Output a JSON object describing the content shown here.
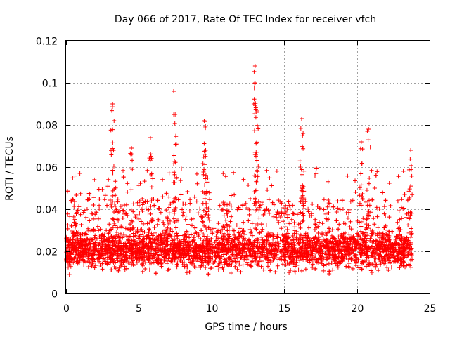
{
  "chart_data": {
    "type": "scatter",
    "title": "Day 066 of 2017, Rate Of TEC Index for receiver vfch",
    "xlabel": "GPS time / hours",
    "ylabel": "ROTI / TECUs",
    "xlim": [
      0,
      25
    ],
    "ylim": [
      0,
      0.12
    ],
    "x_ticks": [
      0,
      5,
      10,
      15,
      20,
      25
    ],
    "x_tick_labels": [
      "0",
      "5",
      "10",
      "15",
      "20",
      "25"
    ],
    "y_ticks": [
      0,
      0.02,
      0.04,
      0.06,
      0.08,
      0.1,
      0.12
    ],
    "y_tick_labels": [
      "0",
      "0.02",
      "0.04",
      "0.06",
      "0.08",
      "0.1",
      "0.12"
    ],
    "grid": true,
    "marker": "plus",
    "color": "#ff0000",
    "data_range_x": [
      0,
      23.8
    ],
    "bulk_band": [
      0.008,
      0.03
    ],
    "peaks": [
      {
        "x": 3.2,
        "y": 0.09
      },
      {
        "x": 3.3,
        "y": 0.082
      },
      {
        "x": 4.5,
        "y": 0.069
      },
      {
        "x": 5.8,
        "y": 0.074
      },
      {
        "x": 7.4,
        "y": 0.096
      },
      {
        "x": 7.5,
        "y": 0.085
      },
      {
        "x": 9.5,
        "y": 0.082
      },
      {
        "x": 9.6,
        "y": 0.068
      },
      {
        "x": 13.0,
        "y": 0.108
      },
      {
        "x": 13.0,
        "y": 0.1
      },
      {
        "x": 13.1,
        "y": 0.086
      },
      {
        "x": 16.2,
        "y": 0.083
      },
      {
        "x": 16.3,
        "y": 0.076
      },
      {
        "x": 20.3,
        "y": 0.072
      },
      {
        "x": 20.8,
        "y": 0.078
      },
      {
        "x": 23.7,
        "y": 0.068
      }
    ]
  }
}
